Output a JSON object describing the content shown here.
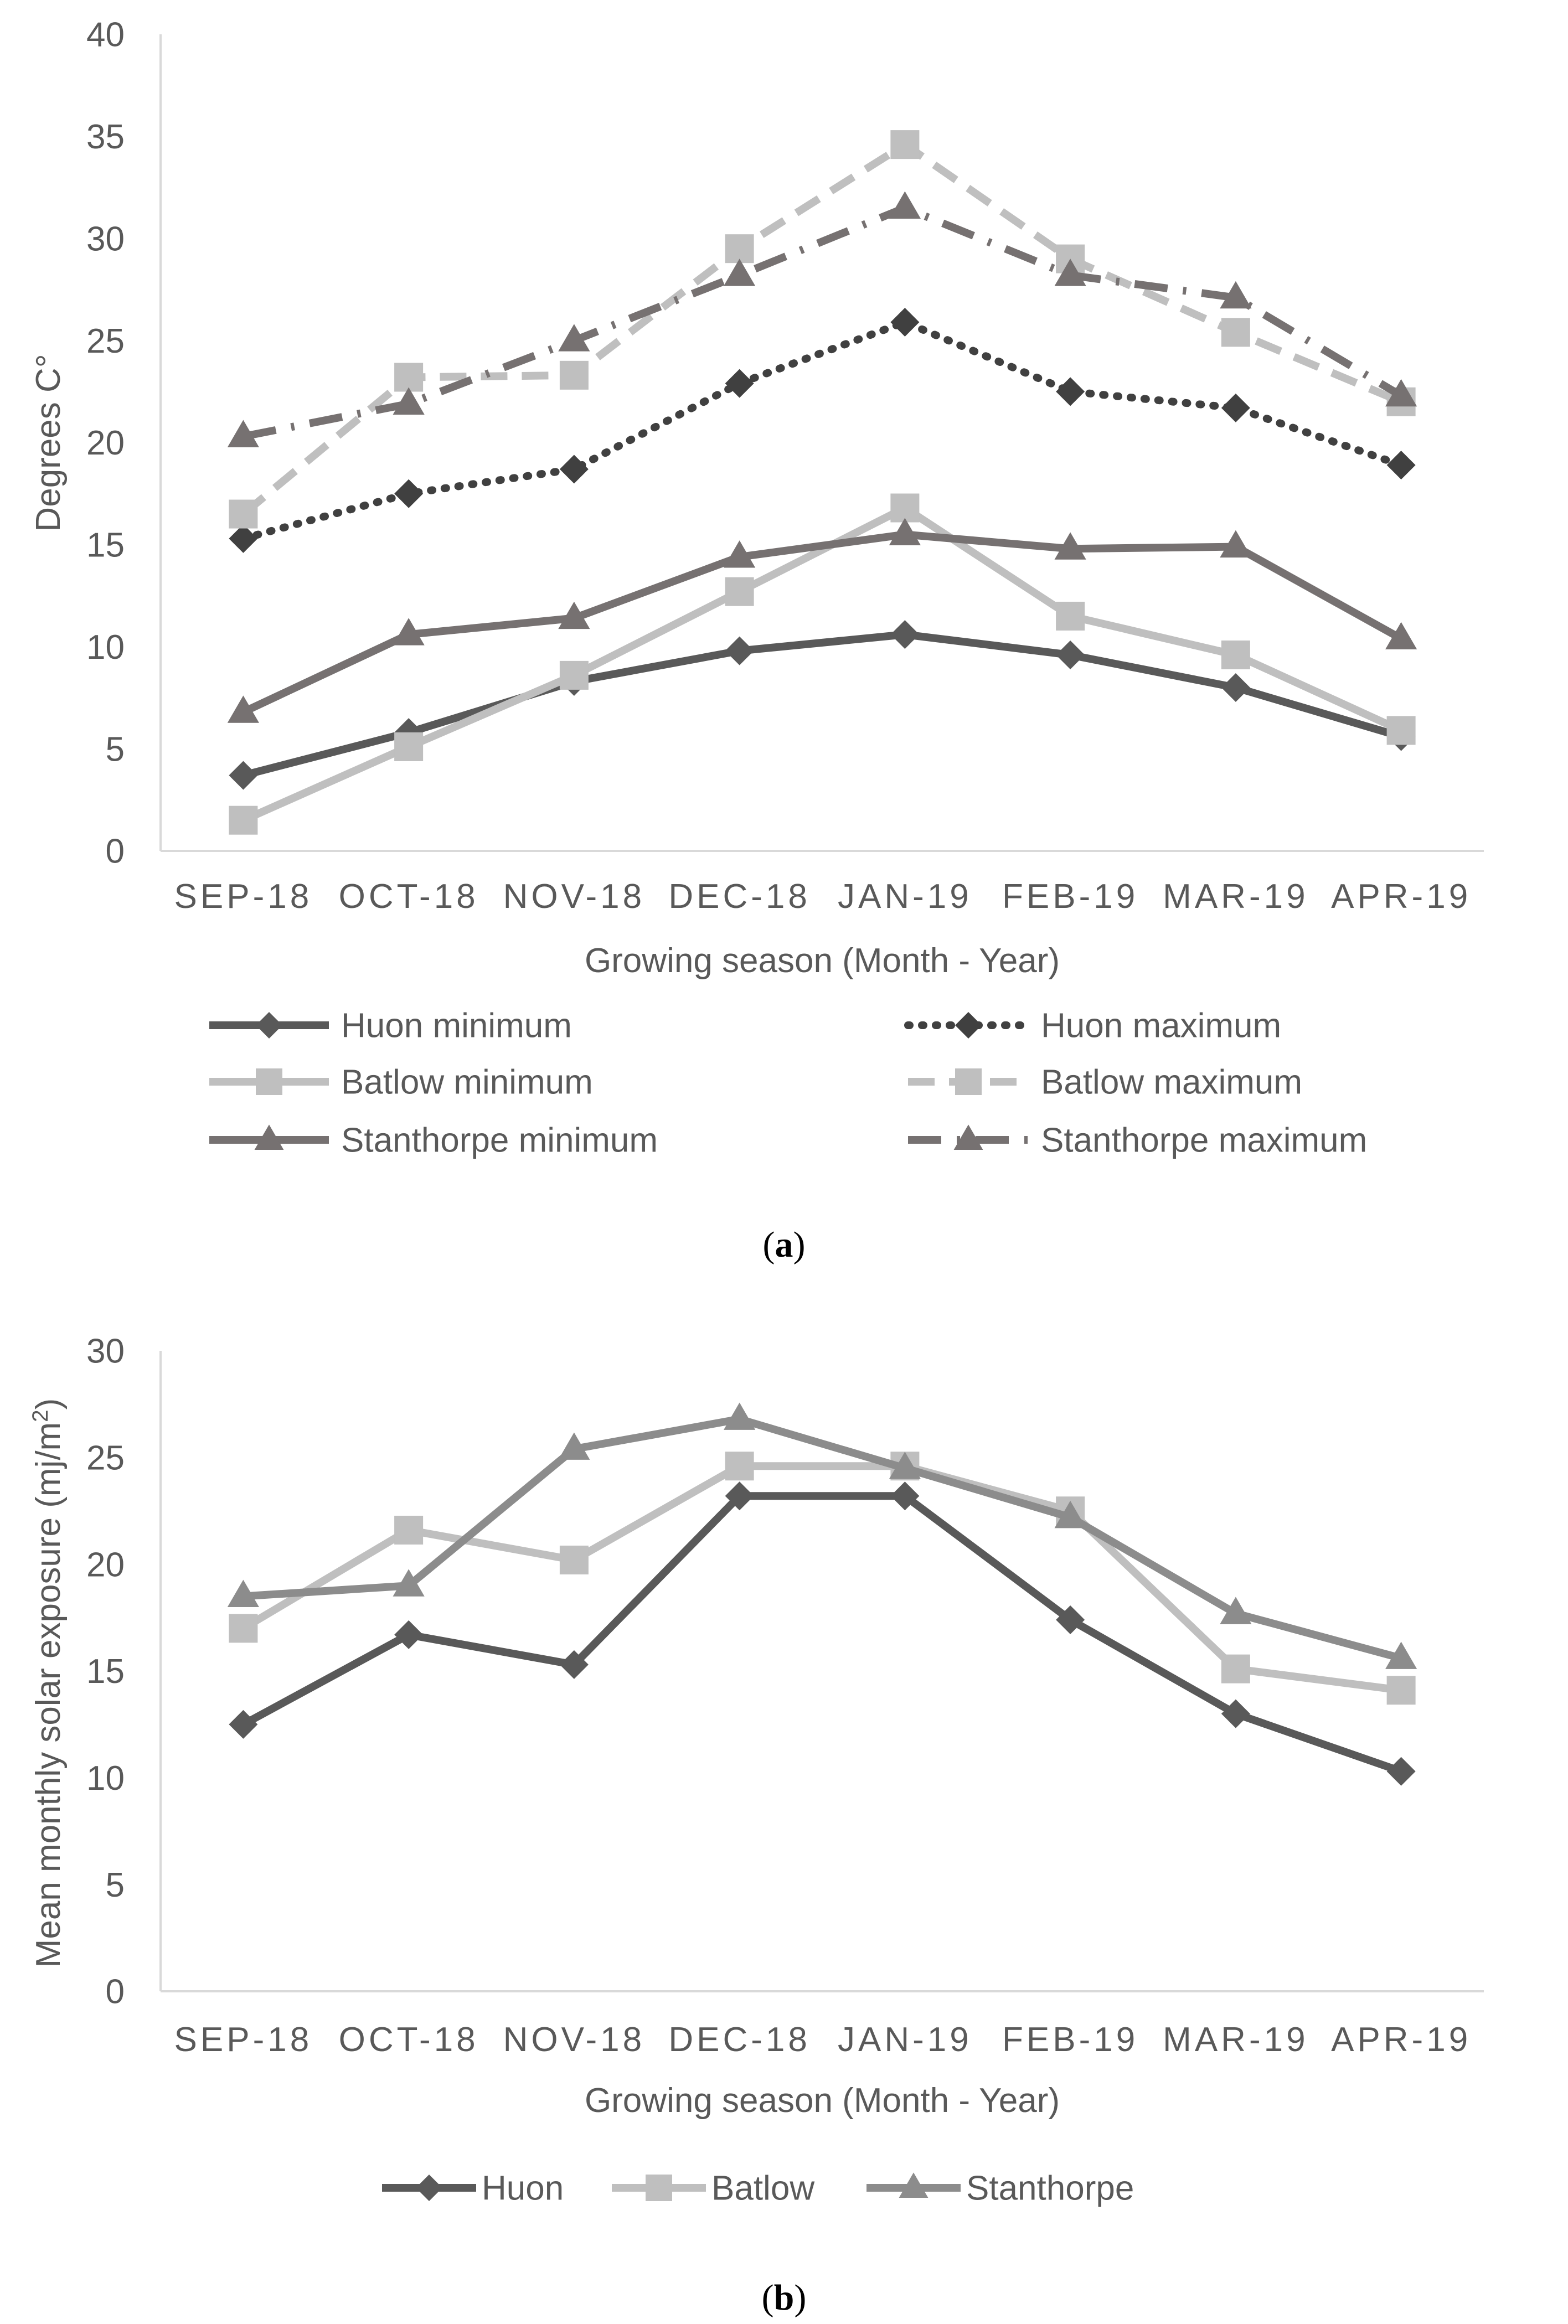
{
  "chart_data": [
    {
      "panel": "a",
      "panel_label_prefix": "(",
      "panel_label_letter": "a",
      "panel_label_suffix": ")",
      "type": "line",
      "ylabel": "Degrees C°",
      "xlabel": "Growing season (Month - Year)",
      "ylim": [
        0,
        40
      ],
      "yticks": [
        0,
        5,
        10,
        15,
        20,
        25,
        30,
        35,
        40
      ],
      "categories": [
        "SEP-18",
        "OCT-18",
        "NOV-18",
        "DEC-18",
        "JAN-19",
        "FEB-19",
        "MAR-19",
        "APR-19"
      ],
      "legend_position": "bottom",
      "series": [
        {
          "name": "Huon minimum",
          "values": [
            3.7,
            5.8,
            8.3,
            9.8,
            10.6,
            9.6,
            8.0,
            5.6
          ],
          "color": "#595959",
          "marker": "diamond",
          "dash": "solid"
        },
        {
          "name": "Huon maximum",
          "values": [
            15.3,
            17.5,
            18.7,
            22.9,
            25.9,
            22.5,
            21.7,
            18.9
          ],
          "color": "#404040",
          "marker": "diamond",
          "dash": "dotted"
        },
        {
          "name": "Batlow minimum",
          "values": [
            1.5,
            5.1,
            8.6,
            12.7,
            16.8,
            11.5,
            9.6,
            5.9
          ],
          "color": "#bfbfbf",
          "marker": "square",
          "dash": "solid"
        },
        {
          "name": "Batlow maximum",
          "values": [
            16.5,
            23.2,
            23.3,
            29.5,
            34.6,
            29.0,
            25.4,
            22.0
          ],
          "color": "#bfbfbf",
          "marker": "square",
          "dash": "dashed"
        },
        {
          "name": "Stanthorpe minimum",
          "values": [
            6.8,
            10.6,
            11.4,
            14.4,
            15.5,
            14.8,
            14.9,
            10.4
          ],
          "color": "#767171",
          "marker": "triangle",
          "dash": "solid"
        },
        {
          "name": "Stanthorpe maximum",
          "values": [
            20.3,
            21.9,
            25.0,
            28.2,
            31.5,
            28.2,
            27.1,
            22.3
          ],
          "color": "#767171",
          "marker": "triangle",
          "dash": "dashdot"
        }
      ]
    },
    {
      "panel": "b",
      "panel_label_prefix": "(",
      "panel_label_letter": "b",
      "panel_label_suffix": ")",
      "type": "line",
      "ylabel": "Mean monthly solar exposure  (mj/m",
      "ylabel_sup": "2",
      "ylabel_end": ")",
      "xlabel": "Growing season (Month - Year)",
      "ylim": [
        0,
        30
      ],
      "yticks": [
        0,
        5,
        10,
        15,
        20,
        25,
        30
      ],
      "categories": [
        "SEP-18",
        "OCT-18",
        "NOV-18",
        "DEC-18",
        "JAN-19",
        "FEB-19",
        "MAR-19",
        "APR-19"
      ],
      "legend_position": "bottom",
      "series": [
        {
          "name": "Huon",
          "values": [
            12.5,
            16.7,
            15.3,
            23.2,
            23.2,
            17.4,
            13.0,
            10.3
          ],
          "color": "#595959",
          "marker": "diamond",
          "dash": "solid"
        },
        {
          "name": "Batlow",
          "values": [
            17.0,
            21.6,
            20.2,
            24.6,
            24.6,
            22.5,
            15.1,
            14.1
          ],
          "color": "#bfbfbf",
          "marker": "square",
          "dash": "solid"
        },
        {
          "name": "Stanthorpe",
          "values": [
            18.5,
            19.0,
            25.4,
            26.8,
            24.5,
            22.2,
            17.7,
            15.6
          ],
          "color": "#8c8c8c",
          "marker": "triangle",
          "dash": "solid"
        }
      ]
    }
  ]
}
